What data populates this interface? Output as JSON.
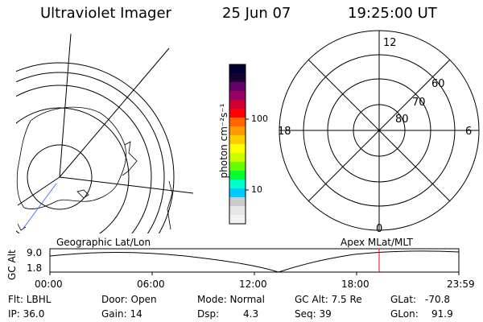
{
  "header": {
    "title": "Ultraviolet Imager",
    "date": "25 Jun 07",
    "time": "19:25:00 UT"
  },
  "left_map": {
    "label": "Geographic Lat/Lon"
  },
  "right_map": {
    "label": "Apex MLat/MLT",
    "hours": {
      "top": "12",
      "left": "18",
      "right": "6",
      "bottom": "0"
    },
    "lat_rings": [
      "60",
      "70",
      "80"
    ]
  },
  "colorbar": {
    "unit_label": "photon cm⁻²s⁻¹",
    "ticks": [
      "100",
      "10"
    ],
    "colors": [
      "#000033",
      "#1a0033",
      "#660066",
      "#990066",
      "#cc0033",
      "#ff0000",
      "#ff6600",
      "#ff9900",
      "#ffcc00",
      "#ffff00",
      "#ccff00",
      "#66ff00",
      "#00ff33",
      "#00ffcc",
      "#00ccff",
      "#cccccc",
      "#e6e6e6",
      "#f2f2f2"
    ]
  },
  "timeline": {
    "axis_label": "GC Alt",
    "y_ticks": [
      "9.0",
      "1.8"
    ],
    "x_ticks": [
      "00:00",
      "06:00",
      "12:00",
      "18:00",
      "23:59"
    ],
    "marker_color": "#ff0000"
  },
  "status": {
    "flt": "Flt: LBHL",
    "ip": "IP: 36.0",
    "door": "Door: Open",
    "gain": "Gain: 14",
    "mode": "Mode: Normal",
    "dsp": "Dsp:",
    "dsp_val": "4.3",
    "gcalt": "GC Alt: 7.5 Re",
    "seq": "Seq: 39",
    "glat_label": "GLat:",
    "glat_val": "-70.8",
    "glon_label": "GLon:",
    "glon_val": "91.9"
  }
}
